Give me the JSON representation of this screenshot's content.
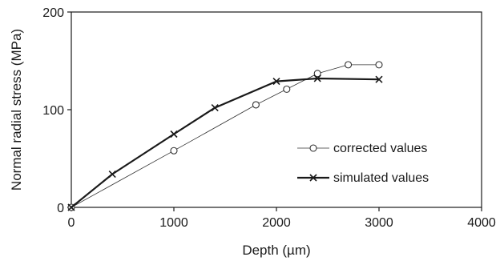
{
  "chart_data": {
    "type": "line",
    "title": "",
    "xlabel": "Depth (µm)",
    "ylabel": "Normal radial stress (MPa)",
    "xlim": [
      0,
      4000
    ],
    "ylim": [
      0,
      200
    ],
    "x_ticks": [
      0,
      1000,
      2000,
      3000,
      4000
    ],
    "y_ticks": [
      0,
      100,
      200
    ],
    "grid": false,
    "legend_position": "right",
    "series": [
      {
        "name": "corrected values",
        "marker": "circle",
        "line": "thin",
        "color": "#333333",
        "x": [
          0,
          1000,
          1800,
          2100,
          2400,
          2700,
          3000
        ],
        "y": [
          0,
          58,
          105,
          121,
          137,
          146,
          146
        ]
      },
      {
        "name": "simulated values",
        "marker": "cross",
        "line": "thick",
        "color": "#1a1a1a",
        "x": [
          0,
          400,
          1000,
          1400,
          2000,
          2400,
          3000
        ],
        "y": [
          0,
          34,
          75,
          102,
          129,
          132,
          131
        ]
      }
    ]
  }
}
